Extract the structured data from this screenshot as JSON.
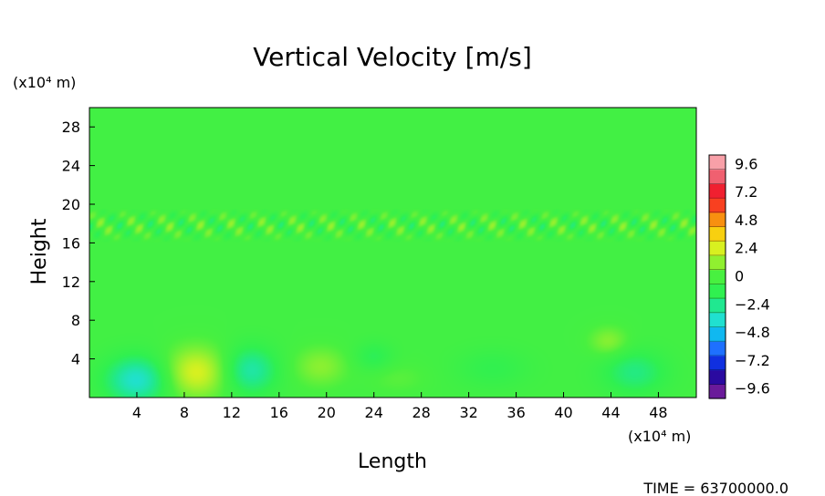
{
  "chart_data": {
    "type": "heatmap",
    "title": "Vertical Velocity [m/s]",
    "xlabel": "Length",
    "ylabel": "Height",
    "x_unit": "(x10⁴ m)",
    "y_unit": "(x10⁴ m)",
    "xlim": [
      0,
      51.2
    ],
    "ylim": [
      0,
      30
    ],
    "x_ticks": [
      4,
      8,
      12,
      16,
      20,
      24,
      28,
      32,
      36,
      40,
      44,
      48
    ],
    "y_ticks": [
      4,
      8,
      12,
      16,
      20,
      24,
      28
    ],
    "colorbar": {
      "ticks": [
        9.6,
        7.2,
        4.8,
        2.4,
        0,
        -2.4,
        -4.8,
        -7.2,
        -9.6
      ],
      "tick_labels": [
        "9.6",
        "7.2",
        "4.8",
        "2.4",
        "0",
        "−2.4",
        "−4.8",
        "−7.2",
        "−9.6"
      ],
      "range": [
        -10.4,
        10.4
      ],
      "colors": [
        "#6a1a9a",
        "#2a0aa0",
        "#1030e0",
        "#1e70ff",
        "#10b8f0",
        "#20e0d0",
        "#20e890",
        "#30f050",
        "#48f040",
        "#90f030",
        "#d8f020",
        "#f8d010",
        "#f89010",
        "#f84020",
        "#f02030",
        "#f06070",
        "#f8a0a8"
      ]
    },
    "background_value": -0.3,
    "features": [
      {
        "x": 4.0,
        "y": 1.8,
        "sx": 2.6,
        "sy": 2.4,
        "value": -3.6
      },
      {
        "x": 9.0,
        "y": 2.6,
        "sx": 2.6,
        "sy": 2.6,
        "value": 3.0
      },
      {
        "x": 13.6,
        "y": 2.8,
        "sx": 2.2,
        "sy": 2.4,
        "value": -2.8
      },
      {
        "x": 19.5,
        "y": 3.2,
        "sx": 2.2,
        "sy": 2.0,
        "value": 1.5
      },
      {
        "x": 24.0,
        "y": 4.2,
        "sx": 1.6,
        "sy": 1.5,
        "value": -1.2
      },
      {
        "x": 43.8,
        "y": 5.8,
        "sx": 1.6,
        "sy": 1.5,
        "value": 1.5
      },
      {
        "x": 46.0,
        "y": 2.6,
        "sx": 2.6,
        "sy": 2.2,
        "value": -2.0
      },
      {
        "x": 34.0,
        "y": 3.0,
        "sx": 3.0,
        "sy": 2.0,
        "value": -0.9
      },
      {
        "x": 26.0,
        "y": 2.0,
        "sx": 2.6,
        "sy": 1.6,
        "value": 0.6
      }
    ],
    "band": {
      "y_min": 16.0,
      "y_max": 19.6,
      "amplitude": 1.8
    },
    "footer": "TIME = 63700000.0"
  }
}
